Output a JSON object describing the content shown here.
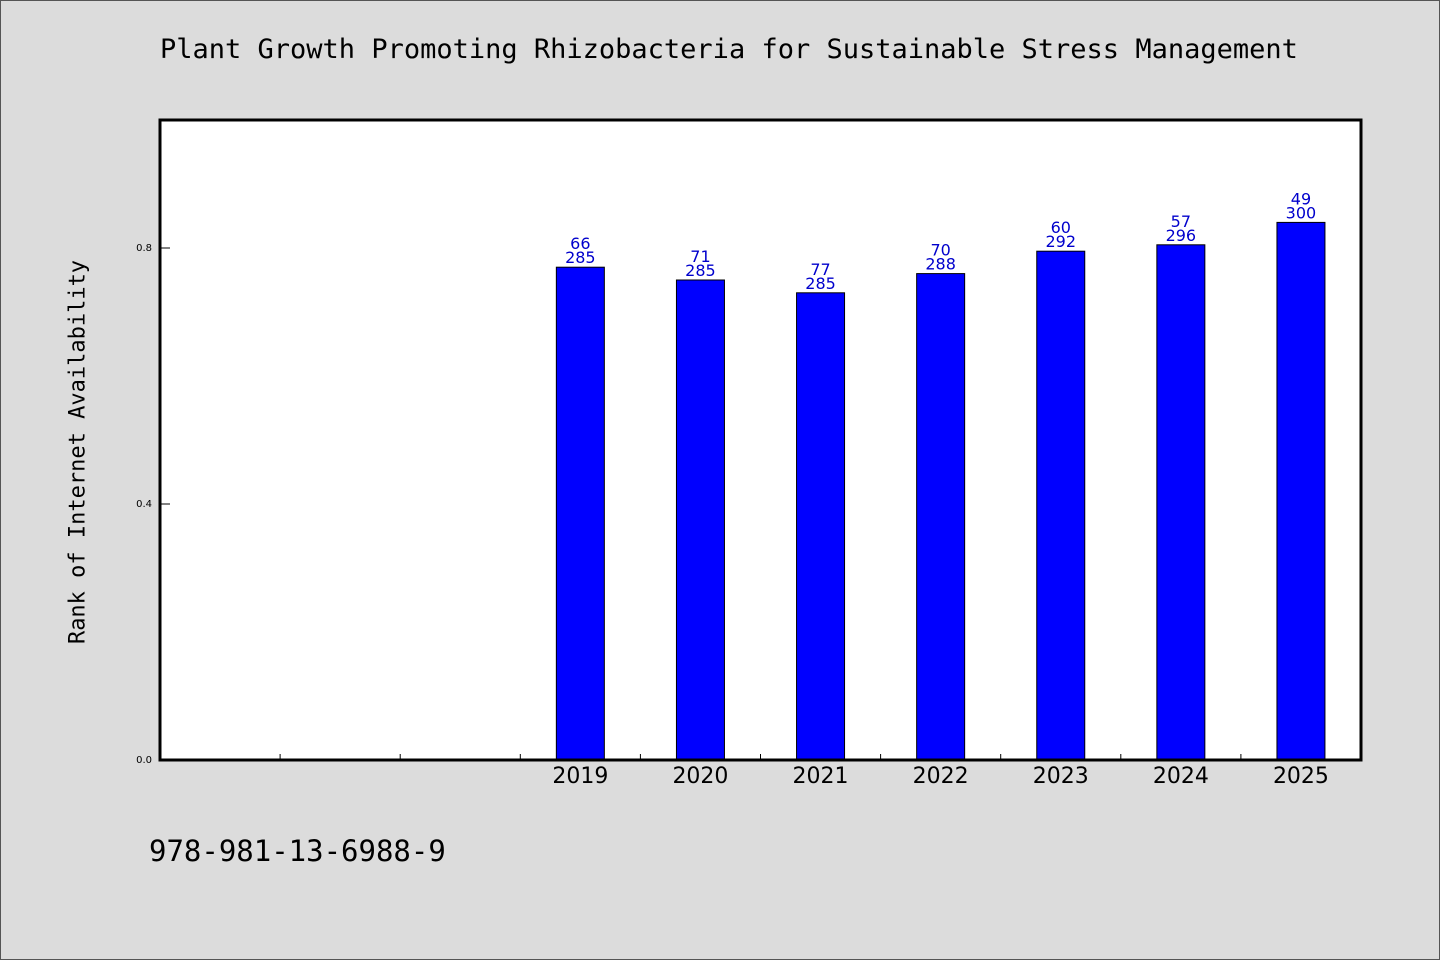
{
  "chart_data": {
    "type": "bar",
    "title": "Plant Growth Promoting Rhizobacteria for Sustainable Stress Management",
    "xlabel": "",
    "ylabel": "Rank of Internet Availability",
    "ylim": [
      0,
      1.0
    ],
    "yticks": [
      "0.0",
      "0.4",
      "0.8"
    ],
    "grid": false,
    "categories": [
      "",
      "",
      "",
      "2019",
      "2020",
      "2021",
      "2022",
      "2023",
      "2024",
      "2025"
    ],
    "values": [
      null,
      null,
      null,
      0.77,
      0.75,
      0.73,
      0.76,
      0.795,
      0.805,
      0.84
    ],
    "labels_top": [
      "",
      "",
      "",
      "66",
      "71",
      "77",
      "70",
      "60",
      "57",
      "49"
    ],
    "labels_bottom": [
      "",
      "",
      "",
      "285",
      "285",
      "285",
      "288",
      "292",
      "296",
      "300"
    ],
    "colors": {
      "bar": "#0000ff",
      "value_label": "#0000cc",
      "background": "#dcdcdc",
      "plot": "#ffffff"
    }
  },
  "footer": {
    "isbn": "978-981-13-6988-9"
  }
}
